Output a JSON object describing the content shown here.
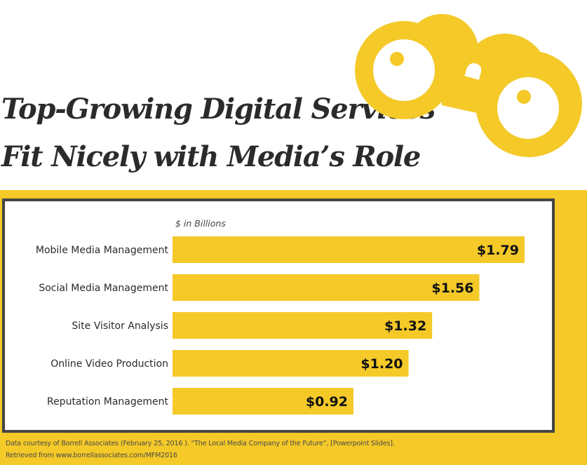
{
  "header": {
    "title_line1": "Top-Growing Digital Services",
    "title_line2": "Fit Nicely with Media’s Role",
    "illustration": "binoculars-icon"
  },
  "colors": {
    "accent": "#f4c928",
    "frame": "#454545",
    "title_text": "#2b2b2b"
  },
  "chart_data": {
    "type": "bar",
    "orientation": "horizontal",
    "title": "Top-Growing Digital Services Fit Nicely with Media’s Role",
    "unit_label": "$ in Billions",
    "xlabel": "",
    "ylabel": "",
    "categories": [
      "Mobile Media Management",
      "Social Media Management",
      "Site Visitor Analysis",
      "Online Video Production",
      "Reputation Management"
    ],
    "values": [
      1.79,
      1.56,
      1.32,
      1.2,
      0.92
    ],
    "value_labels": [
      "$1.79",
      "$1.56",
      "$1.32",
      "$1.20",
      "$0.92"
    ],
    "xlim": [
      0,
      1.79
    ],
    "grid": false,
    "legend": "none",
    "bar_color": "#f4c928"
  },
  "footer": {
    "source_line1": "Data courtesy of Borrell Associates (February 25, 2016 ). “The Local Media Company of the Future”, [Powerpoint Slides].",
    "source_line2": "Retrieved from www.borrellassociates.com/MFM2016"
  }
}
